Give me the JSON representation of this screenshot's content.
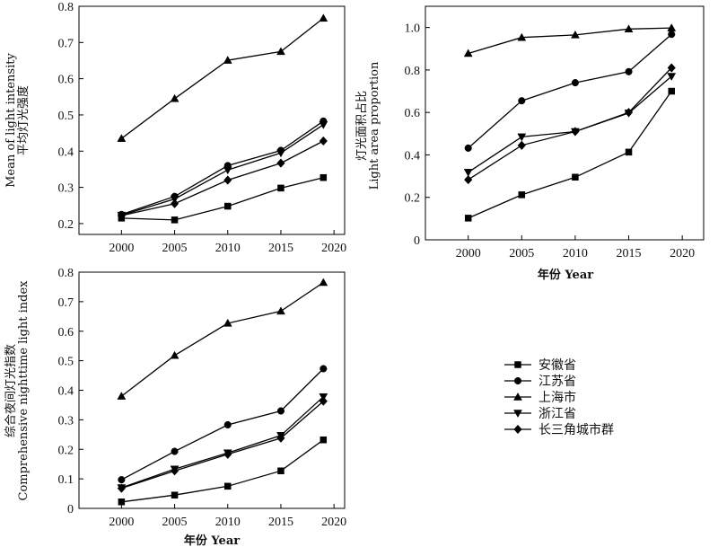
{
  "legend": [
    "安徽省",
    "江苏省",
    "上海市",
    "浙江省",
    "长三角城市群"
  ],
  "markers": [
    "square",
    "circle",
    "triangle-up",
    "triangle-down",
    "diamond"
  ],
  "chart_data": [
    {
      "type": "line",
      "title": "",
      "xlabel": "",
      "ylabel_cn": "平均灯光强度",
      "ylabel_en": "Mean of  light intensity",
      "xlim": [
        1996,
        2021
      ],
      "ylim": [
        0.17,
        0.8
      ],
      "xticks": [
        2000,
        2005,
        2010,
        2015,
        2020
      ],
      "yticks": [
        0.2,
        0.3,
        0.4,
        0.5,
        0.6,
        0.7,
        0.8
      ],
      "x": [
        2000,
        2005,
        2010,
        2015,
        2019
      ],
      "series": [
        {
          "name": "安徽省",
          "values": [
            0.215,
            0.21,
            0.248,
            0.298,
            0.327
          ]
        },
        {
          "name": "江苏省",
          "values": [
            0.225,
            0.275,
            0.36,
            0.402,
            0.483
          ]
        },
        {
          "name": "上海市",
          "values": [
            0.435,
            0.545,
            0.651,
            0.675,
            0.767
          ]
        },
        {
          "name": "浙江省",
          "values": [
            0.223,
            0.268,
            0.348,
            0.395,
            0.473
          ]
        },
        {
          "name": "长三角城市群",
          "values": [
            0.222,
            0.255,
            0.32,
            0.367,
            0.428
          ]
        }
      ]
    },
    {
      "type": "line",
      "title": "",
      "xlabel": "年份 Year",
      "ylabel_cn": "灯光面积占比",
      "ylabel_en": "Light area proportion",
      "xlim": [
        1996,
        2022
      ],
      "ylim": [
        0,
        1.1
      ],
      "xticks": [
        2000,
        2005,
        2010,
        2015,
        2020
      ],
      "yticks": [
        0,
        0.2,
        0.4,
        0.6,
        0.8,
        1.0
      ],
      "x": [
        2000,
        2005,
        2010,
        2015,
        2019
      ],
      "series": [
        {
          "name": "安徽省",
          "values": [
            0.102,
            0.212,
            0.295,
            0.413,
            0.7
          ]
        },
        {
          "name": "江苏省",
          "values": [
            0.432,
            0.655,
            0.74,
            0.792,
            0.968
          ]
        },
        {
          "name": "上海市",
          "values": [
            0.878,
            0.953,
            0.965,
            0.993,
            0.998
          ]
        },
        {
          "name": "浙江省",
          "values": [
            0.318,
            0.485,
            0.51,
            0.597,
            0.77
          ]
        },
        {
          "name": "长三角城市群",
          "values": [
            0.283,
            0.445,
            0.51,
            0.6,
            0.81
          ]
        }
      ]
    },
    {
      "type": "line",
      "title": "",
      "xlabel": "年份 Year",
      "ylabel_cn": "综合夜间灯光指数",
      "ylabel_en": "Comprehensive nighttime light index",
      "xlim": [
        1996,
        2021
      ],
      "ylim": [
        0,
        0.8
      ],
      "xticks": [
        2000,
        2005,
        2010,
        2015,
        2020
      ],
      "yticks": [
        0,
        0.1,
        0.2,
        0.3,
        0.4,
        0.5,
        0.6,
        0.7,
        0.8
      ],
      "x": [
        2000,
        2005,
        2010,
        2015,
        2019
      ],
      "series": [
        {
          "name": "安徽省",
          "values": [
            0.022,
            0.045,
            0.075,
            0.127,
            0.232
          ]
        },
        {
          "name": "江苏省",
          "values": [
            0.097,
            0.193,
            0.283,
            0.33,
            0.473
          ]
        },
        {
          "name": "上海市",
          "values": [
            0.38,
            0.518,
            0.627,
            0.668,
            0.765
          ]
        },
        {
          "name": "浙江省",
          "values": [
            0.07,
            0.133,
            0.188,
            0.247,
            0.378
          ]
        },
        {
          "name": "长三角城市群",
          "values": [
            0.068,
            0.127,
            0.183,
            0.238,
            0.363
          ]
        }
      ]
    }
  ]
}
